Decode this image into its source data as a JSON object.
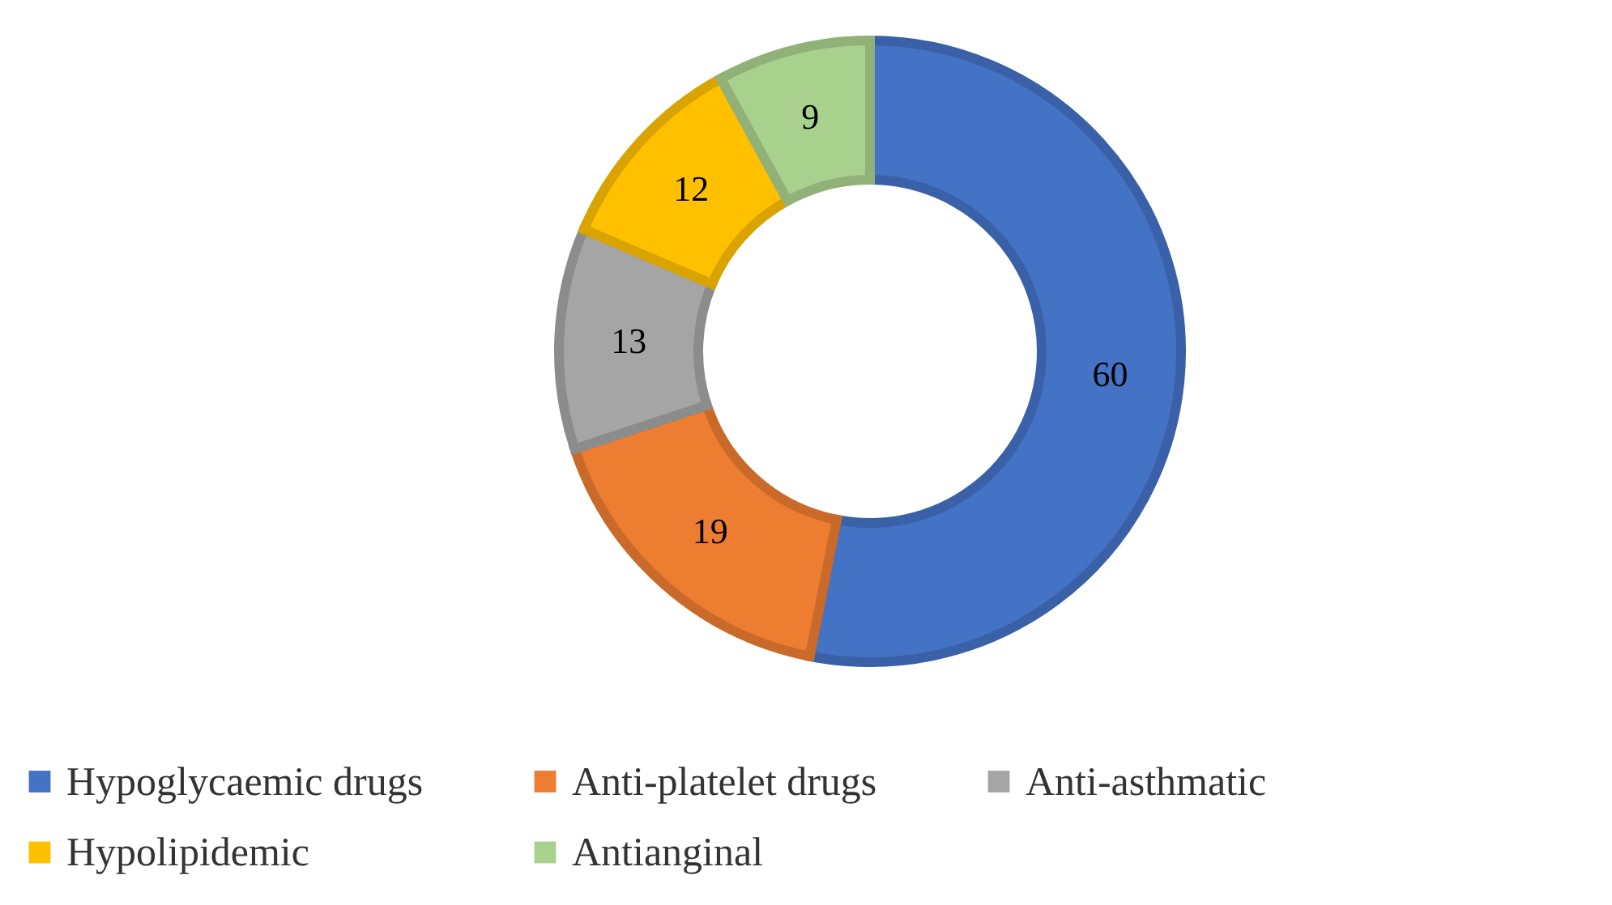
{
  "chart_data": {
    "type": "donut",
    "categories": [
      "Hypoglycaemic drugs",
      "Anti-platelet drugs",
      "Anti-asthmatic",
      "Hypolipidemic",
      "Antianginal"
    ],
    "values": [
      60,
      19,
      13,
      12,
      9
    ],
    "colors": [
      "#4472c4",
      "#ed7d31",
      "#a5a5a5",
      "#ffc000",
      "#a9d18e"
    ],
    "data_labels": true,
    "legend": "bottom"
  }
}
